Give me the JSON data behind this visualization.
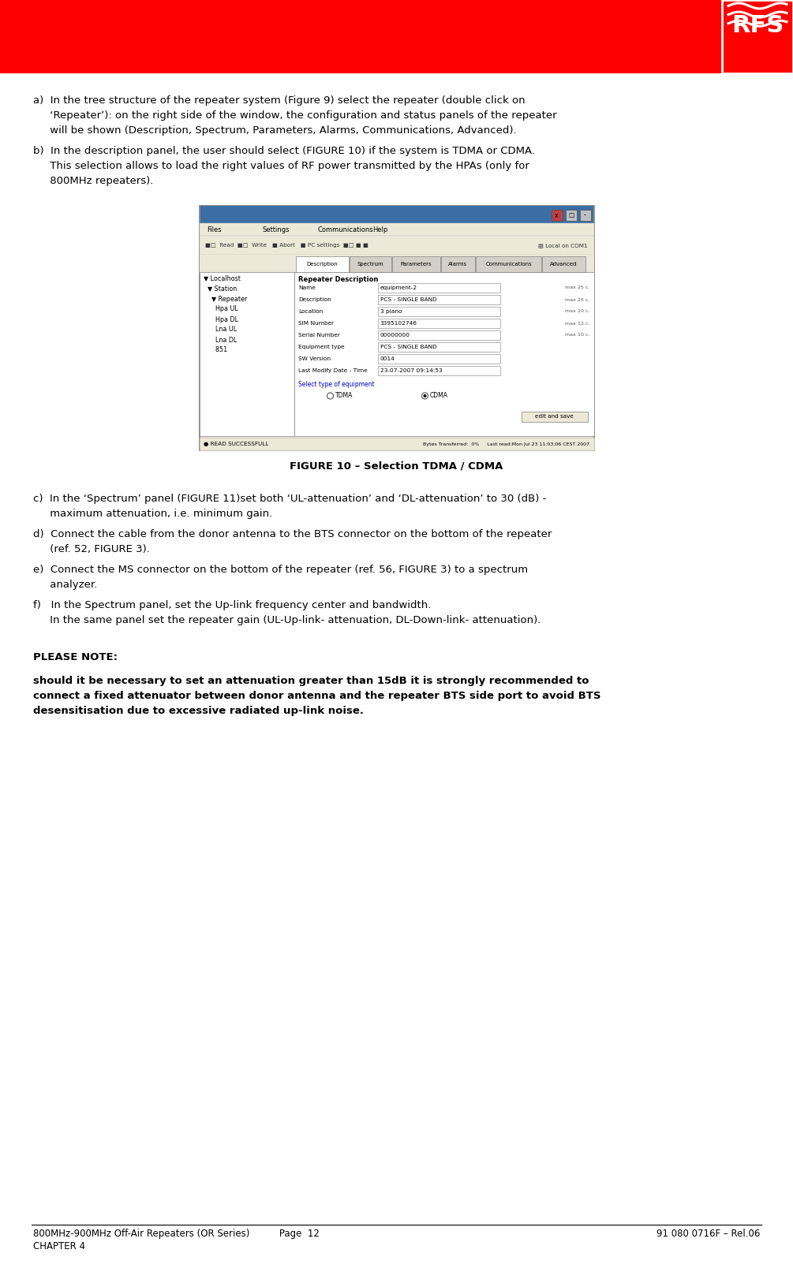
{
  "page_bg": "#ffffff",
  "header_bar_color": "#ff0000",
  "header_bar_height": 0.058,
  "rfs_box_color": "#ff0000",
  "body_text_color": "#000000",
  "footer_text_color": "#000000",
  "title_font_size": 9.5,
  "body_font_size": 9.2,
  "footer_font_size": 8.5,
  "footer_left": "800MHz-900MHz Off-Air Repeaters (OR Series)          Page  12",
  "footer_right": "91 080 0716F – Rel.06",
  "footer_left2": "CHAPTER 4",
  "figure_caption": "FIGURE 10 – Selection TDMA / CDMA",
  "please_note_header": "PLEASE NOTE:",
  "text_a_line1": "a)  In the tree structure of the repeater system (Figure 9) select the repeater (double click on",
  "text_a_line2": "     ‘Repeater’): on the right side of the window, the configuration and status panels of the repeater",
  "text_a_line3": "     will be shown (Description, Spectrum, Parameters, Alarms, Communications, Advanced).",
  "text_b_line1": "b)  In the description panel, the user should select (FIGURE 10) if the system is TDMA or CDMA.",
  "text_b_line2": "     This selection allows to load the right values of RF power transmitted by the HPAs (only for",
  "text_b_line3": "     800MHz repeaters).",
  "text_c_line1": "c)  In the ‘Spectrum’ panel (FIGURE 11)set both ‘UL-attenuation’ and ‘DL-attenuation’ to 30 (dB) -",
  "text_c_line2": "     maximum attenuation, i.e. minimum gain.",
  "text_d_line1": "d)  Connect the cable from the donor antenna to the BTS connector on the bottom of the repeater",
  "text_d_line2": "     (ref. 52, FIGURE 3).",
  "text_e_line1": "e)  Connect the MS connector on the bottom of the repeater (ref. 56, FIGURE 3) to a spectrum",
  "text_e_line2": "     analyzer.",
  "text_f_line1": "f)   In the Spectrum panel, set the Up-link frequency center and bandwidth.",
  "text_f_line2": "     In the same panel set the repeater gain (UL-Up-link- attenuation, DL-Down-link- attenuation).",
  "note_line1": "should it be necessary to set an attenuation greater than 15dB it is strongly recommended to",
  "note_line2": "connect a fixed attenuator between donor antenna and the repeater BTS side port to avoid BTS",
  "note_line3": "desensitisation due to excessive radiated up-link noise.",
  "fields": [
    [
      "Name",
      "equipment-2",
      "max 25 c."
    ],
    [
      "Description",
      "PCS - SINGLE BAND",
      "max 25 c."
    ],
    [
      "Location",
      "3 piano",
      "max 10 c."
    ],
    [
      "SIM Number",
      "3395102746",
      "max 12 c."
    ],
    [
      "Serial Number",
      "00000000",
      "max 10 c."
    ],
    [
      "Equipment type",
      "PCS - SINGLE BAND",
      ""
    ],
    [
      "SW Version",
      "0014",
      ""
    ],
    [
      "Last Modify Date - Time",
      "23-07-2007 09:14:53",
      ""
    ]
  ],
  "tabs": [
    "Description",
    "Spectrum",
    "Parameters",
    "Alarms",
    "Communications",
    "Advanced"
  ],
  "tree_items": [
    "▼ Localhost",
    "  ▼ Station",
    "    ▼ Repeater",
    "      Hpa UL",
    "      Hpa DL",
    "      Lna UL",
    "      Lna DL",
    "      851"
  ]
}
